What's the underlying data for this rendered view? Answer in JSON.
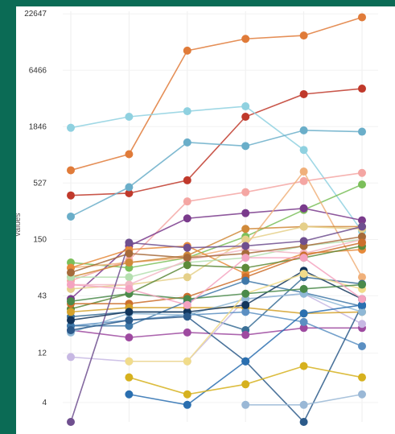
{
  "chart_data": {
    "type": "line",
    "ylabel": "values",
    "yscale": "log",
    "ylim": [
      2.6,
      24000
    ],
    "ytick_labels": [
      "22647",
      "6466",
      "1846",
      "527",
      "150",
      "43",
      "12",
      "4"
    ],
    "ytick_values": [
      22647,
      6466,
      1846,
      527,
      150,
      43,
      12,
      4
    ],
    "x": [
      1,
      2,
      3,
      4,
      5,
      6
    ],
    "grid": true,
    "legend": "none",
    "series": [
      {
        "color": "#e07b39",
        "values": [
          700,
          1000,
          10000,
          13000,
          14000,
          21000
        ]
      },
      {
        "color": "#c0392b",
        "values": [
          400,
          420,
          560,
          2300,
          3800,
          4300
        ]
      },
      {
        "color": "#8fd1e0",
        "values": [
          1800,
          2300,
          2600,
          2900,
          1100,
          180
        ]
      },
      {
        "color": "#6aaec9",
        "values": [
          250,
          480,
          1300,
          1200,
          1700,
          1650
        ]
      },
      {
        "color": "#f4a6a3",
        "values": [
          60,
          95,
          350,
          430,
          550,
          660
        ]
      },
      {
        "color": "#7bbf5a",
        "values": [
          90,
          80,
          100,
          160,
          290,
          510
        ]
      },
      {
        "color": "#7a3b8c",
        "values": [
          40,
          130,
          240,
          270,
          300,
          230
        ]
      },
      {
        "color": "#f0b07a",
        "values": [
          80,
          90,
          100,
          130,
          680,
          65
        ]
      },
      {
        "color": "#d08a3a",
        "values": [
          65,
          90,
          105,
          190,
          200,
          200
        ]
      },
      {
        "color": "#e5d08a",
        "values": [
          50,
          55,
          65,
          150,
          200,
          190
        ]
      },
      {
        "color": "#e68a3a",
        "values": [
          80,
          120,
          130,
          70,
          110,
          120
        ]
      },
      {
        "color": "#b5dfb0",
        "values": [
          65,
          65,
          90,
          100,
          130,
          150
        ]
      },
      {
        "color": "#f2b8c6",
        "values": [
          55,
          55,
          95,
          120,
          110,
          150
        ]
      },
      {
        "color": "#a66a3a",
        "values": [
          72,
          110,
          100,
          110,
          130,
          160
        ]
      },
      {
        "color": "#5d8a3a",
        "values": [
          32,
          45,
          85,
          80,
          100,
          130
        ]
      },
      {
        "color": "#cc6f2c",
        "values": [
          36,
          36,
          42,
          65,
          105,
          140
        ]
      },
      {
        "color": "#3a6f96",
        "values": [
          27,
          30,
          30,
          20,
          65,
          56
        ]
      },
      {
        "color": "#9e4aa0",
        "values": [
          20,
          17,
          19,
          18,
          21,
          21
        ]
      },
      {
        "color": "#c7b8e3",
        "values": [
          11,
          10,
          10,
          40,
          45,
          23
        ]
      },
      {
        "color": "#d4a12a",
        "values": [
          30,
          33,
          33,
          33,
          29,
          30
        ]
      },
      {
        "color": "#5b8fc2",
        "values": [
          22,
          25,
          28,
          30,
          24,
          14
        ]
      },
      {
        "color": "#3f78a8",
        "values": [
          22,
          22,
          38,
          60,
          46,
          34
        ]
      },
      {
        "color": "#8fb8d6",
        "values": [
          19,
          29,
          28,
          40,
          45,
          30
        ]
      },
      {
        "color": "#6f4f8f",
        "values": [
          2.6,
          140,
          125,
          130,
          145,
          200
        ]
      },
      {
        "color": "#12355b",
        "values": [
          25,
          30,
          30,
          35,
          75,
          40
        ]
      },
      {
        "color": "#2b5a8a",
        "values": [
          20,
          25,
          27,
          10,
          2.6,
          35
        ]
      },
      {
        "color": "#2a6fb0",
        "values": [
          null,
          4.8,
          3.8,
          10,
          29,
          35
        ]
      },
      {
        "color": "#d6b11e",
        "values": [
          null,
          7,
          4.8,
          6,
          9,
          7
        ]
      },
      {
        "color": "#9ab8d6",
        "values": [
          null,
          null,
          null,
          3.8,
          3.8,
          4.8
        ]
      },
      {
        "color": "#f1dc8a",
        "values": [
          null,
          10,
          10,
          45,
          70,
          50
        ]
      },
      {
        "color": "#4a8a4a",
        "values": [
          38,
          45,
          40,
          45,
          50,
          55
        ]
      },
      {
        "color": "#f4a3c0",
        "values": [
          55,
          50,
          35,
          100,
          100,
          40
        ]
      }
    ]
  }
}
